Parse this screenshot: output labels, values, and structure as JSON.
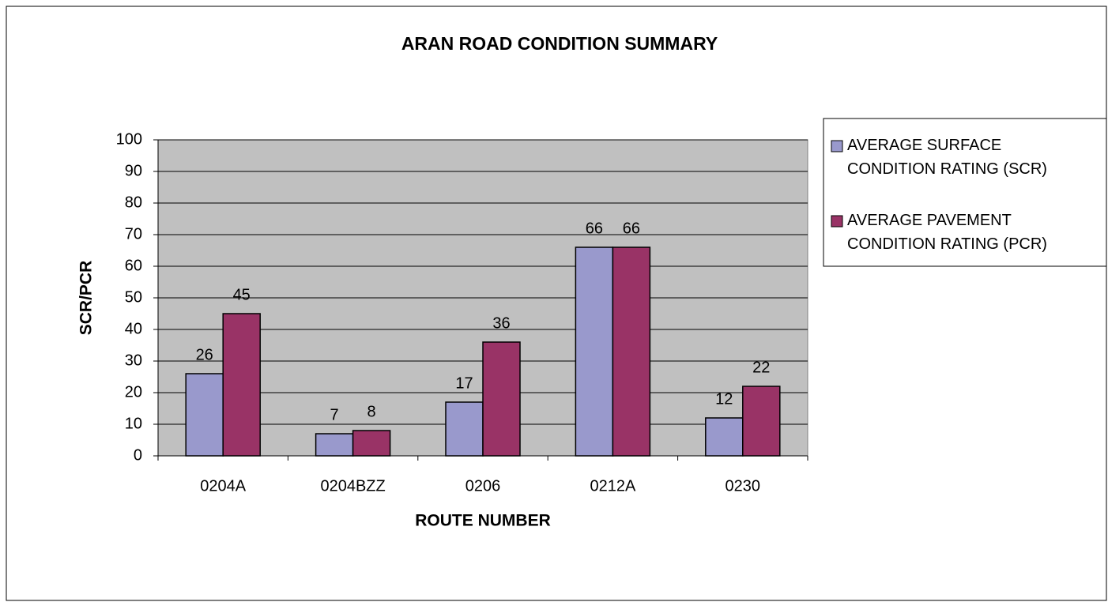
{
  "chart_data": {
    "type": "bar",
    "title": "ARAN ROAD CONDITION SUMMARY",
    "x_label": "ROUTE NUMBER",
    "y_label": "SCR/PCR",
    "categories": [
      "0204A",
      "0204BZZ",
      "0206",
      "0212A",
      "0230"
    ],
    "series": [
      {
        "name": "AVERAGE SURFACE CONDITION RATING (SCR)",
        "color": "#9999cc",
        "values": [
          26,
          7,
          17,
          66,
          12
        ]
      },
      {
        "name": "AVERAGE PAVEMENT CONDITION RATING (PCR)",
        "color": "#993366",
        "values": [
          45,
          8,
          36,
          66,
          22
        ]
      }
    ],
    "ylim": [
      0,
      100
    ],
    "yticks": [
      0,
      10,
      20,
      30,
      40,
      50,
      60,
      70,
      80,
      90,
      100
    ],
    "grid": true,
    "legend": "right"
  }
}
